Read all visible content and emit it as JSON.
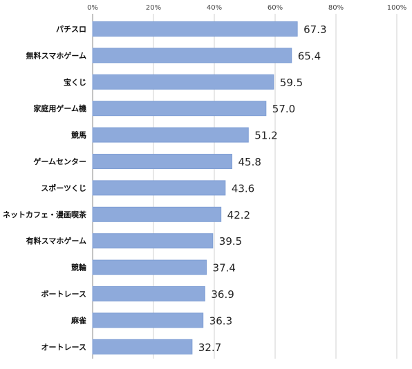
{
  "chart_data": {
    "type": "bar",
    "orientation": "horizontal",
    "categories": [
      "パチスロ",
      "無料スマホゲーム",
      "宝くじ",
      "家庭用ゲーム機",
      "競馬",
      "ゲームセンター",
      "スポーツくじ",
      "ネットカフェ・漫画喫茶",
      "有料スマホゲーム",
      "競輪",
      "ボートレース",
      "麻雀",
      "オートレース"
    ],
    "values": [
      67.3,
      65.4,
      59.5,
      57.0,
      51.2,
      45.8,
      43.6,
      42.2,
      39.5,
      37.4,
      36.9,
      36.3,
      32.7
    ],
    "value_labels": [
      "67.3",
      "65.4",
      "59.5",
      "57.0",
      "51.2",
      "45.8",
      "43.6",
      "42.2",
      "39.5",
      "37.4",
      "36.9",
      "36.3",
      "32.7"
    ],
    "x_ticks": [
      0,
      20,
      40,
      60,
      80,
      100
    ],
    "x_tick_labels": [
      "0%",
      "20%",
      "40%",
      "60%",
      "80%",
      "100%"
    ],
    "xlim": [
      0,
      100
    ],
    "axis_position": "top",
    "grid": true,
    "title": "",
    "xlabel": "",
    "ylabel": "",
    "colors": {
      "bar_fill": "#8eaadb",
      "bar_stroke": "#7f9ed4",
      "grid": "#d0d0d0",
      "axis": "#888888"
    }
  }
}
